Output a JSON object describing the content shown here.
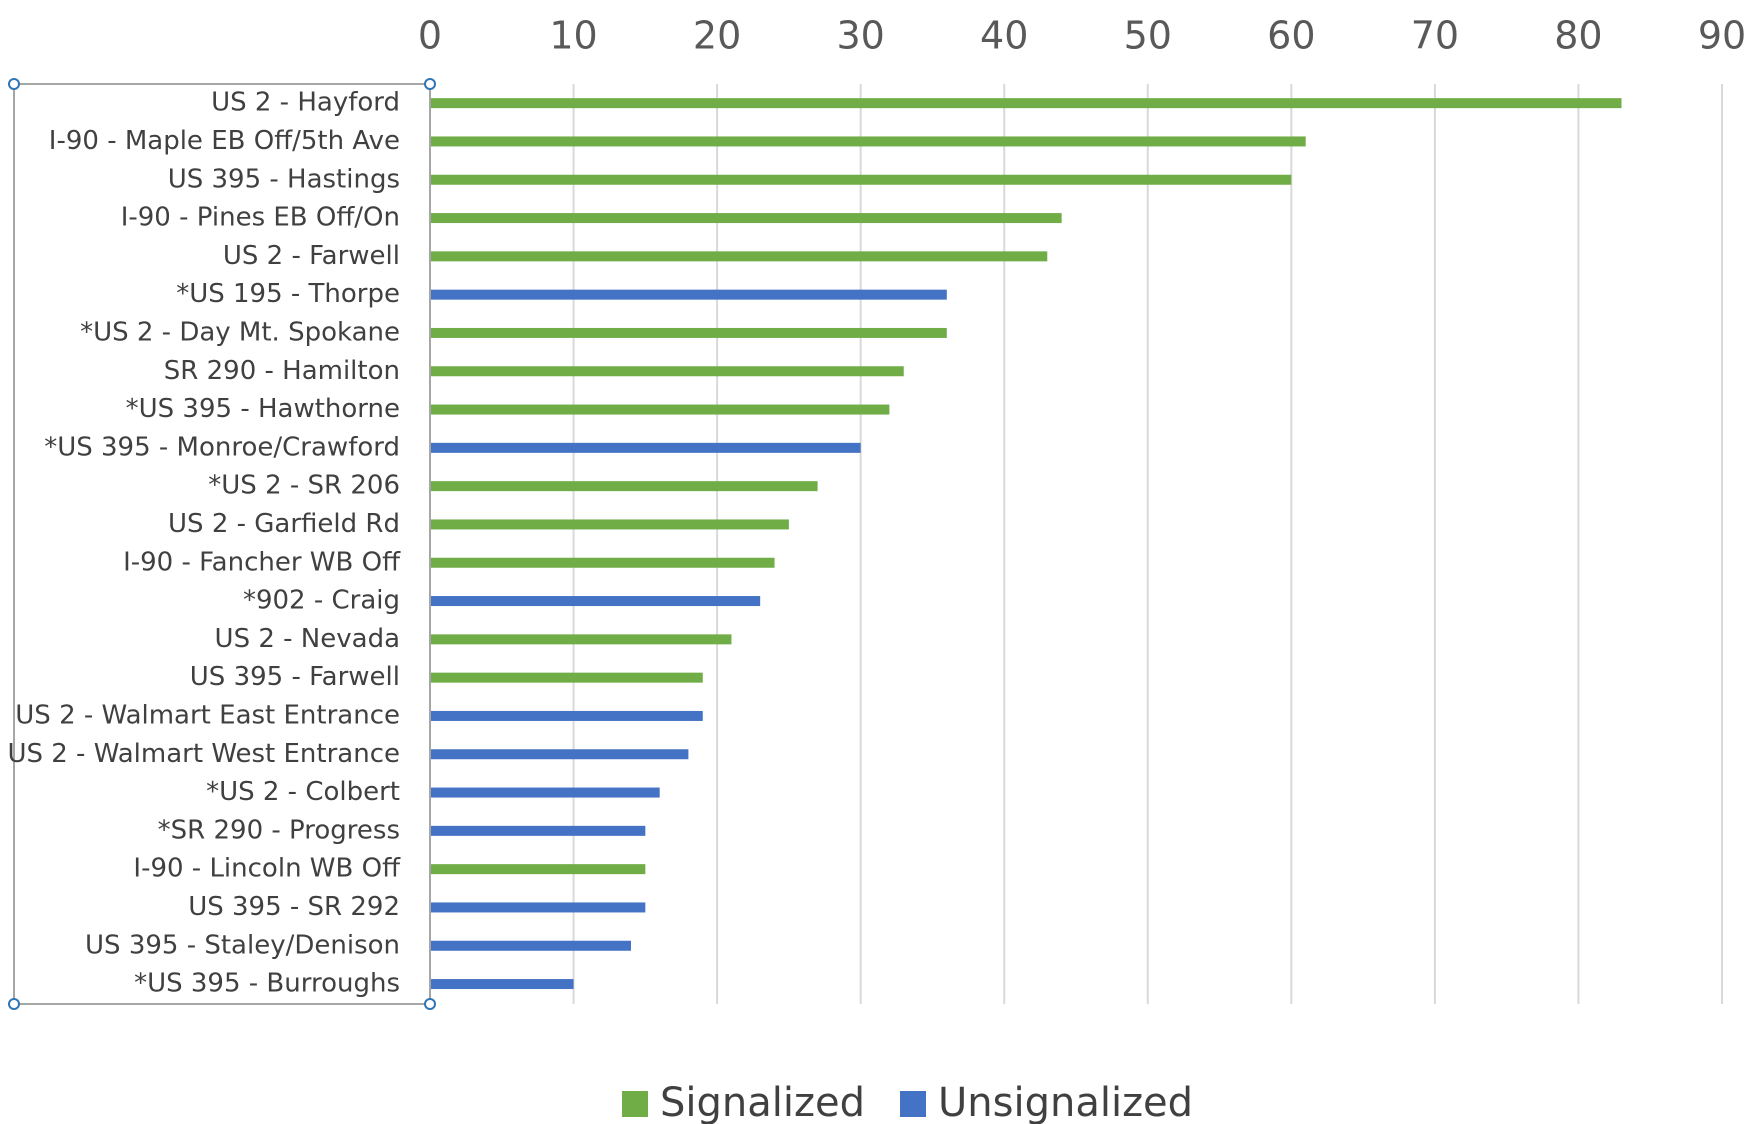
{
  "chart_data": {
    "type": "bar",
    "orientation": "horizontal",
    "title": "",
    "xlabel": "",
    "ylabel": "",
    "xlim": [
      0,
      90
    ],
    "x_ticks": [
      "0",
      "10",
      "20",
      "30",
      "40",
      "50",
      "60",
      "70",
      "80",
      "90"
    ],
    "grid": true,
    "legend_position": "bottom",
    "series": [
      {
        "name": "Signalized",
        "color": "#70AD47"
      },
      {
        "name": "Unsignalized",
        "color": "#4472C4"
      }
    ],
    "bars": [
      {
        "category": "US 2 - Hayford",
        "series": "Signalized",
        "value": 83
      },
      {
        "category": "I-90 - Maple EB Off/5th Ave",
        "series": "Signalized",
        "value": 61
      },
      {
        "category": "US 395 - Hastings",
        "series": "Signalized",
        "value": 60
      },
      {
        "category": "I-90 - Pines EB Off/On",
        "series": "Signalized",
        "value": 44
      },
      {
        "category": "US 2 - Farwell",
        "series": "Signalized",
        "value": 43
      },
      {
        "category": "*US 195 - Thorpe",
        "series": "Unsignalized",
        "value": 36
      },
      {
        "category": "*US 2 - Day Mt. Spokane",
        "series": "Signalized",
        "value": 36
      },
      {
        "category": "SR 290 - Hamilton",
        "series": "Signalized",
        "value": 33
      },
      {
        "category": "*US 395 - Hawthorne",
        "series": "Signalized",
        "value": 32
      },
      {
        "category": "*US 395 - Monroe/Crawford",
        "series": "Unsignalized",
        "value": 30
      },
      {
        "category": "*US 2 - SR 206",
        "series": "Signalized",
        "value": 27
      },
      {
        "category": "US 2 - Garfield Rd",
        "series": "Signalized",
        "value": 25
      },
      {
        "category": "I-90 - Fancher WB Off",
        "series": "Signalized",
        "value": 24
      },
      {
        "category": "*902 - Craig",
        "series": "Unsignalized",
        "value": 23
      },
      {
        "category": "US 2 - Nevada",
        "series": "Signalized",
        "value": 21
      },
      {
        "category": "US 395 - Farwell",
        "series": "Signalized",
        "value": 19
      },
      {
        "category": "US 2 - Walmart East Entrance",
        "series": "Unsignalized",
        "value": 19
      },
      {
        "category": "US 2 - Walmart West Entrance",
        "series": "Unsignalized",
        "value": 18
      },
      {
        "category": "*US 2 - Colbert",
        "series": "Unsignalized",
        "value": 16
      },
      {
        "category": "*SR 290 - Progress",
        "series": "Unsignalized",
        "value": 15
      },
      {
        "category": "I-90 - Lincoln WB Off",
        "series": "Signalized",
        "value": 15
      },
      {
        "category": "US 395 - SR 292",
        "series": "Unsignalized",
        "value": 15
      },
      {
        "category": "US 395 - Staley/Denison",
        "series": "Unsignalized",
        "value": 14
      },
      {
        "category": "*US 395 - Burroughs",
        "series": "Unsignalized",
        "value": 10
      }
    ]
  },
  "colors": {
    "grid": "#D9D9D9",
    "selection": "#A6A6A6",
    "handle": "#2E75B6"
  }
}
